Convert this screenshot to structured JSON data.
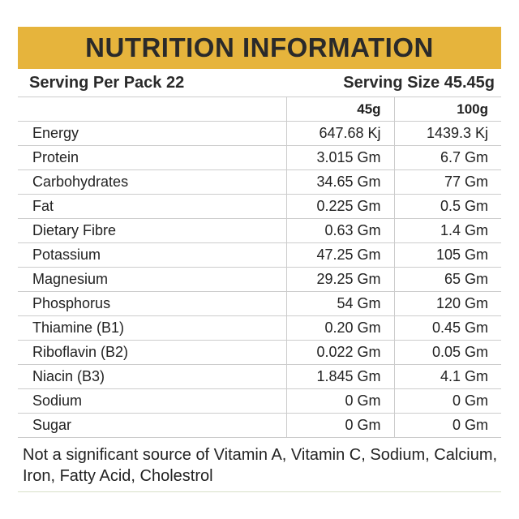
{
  "header": {
    "title": "NUTRITION INFORMATION"
  },
  "serving": {
    "per_pack": "Serving Per Pack 22",
    "size": "Serving Size 45.45g"
  },
  "table": {
    "columns": [
      "45g",
      "100g"
    ],
    "rows": [
      [
        "Energy",
        "647.68 Kj",
        "1439.3 Kj"
      ],
      [
        "Protein",
        "3.015 Gm",
        "6.7 Gm"
      ],
      [
        "Carbohydrates",
        "34.65 Gm",
        "77 Gm"
      ],
      [
        "Fat",
        "0.225 Gm",
        "0.5 Gm"
      ],
      [
        "Dietary Fibre",
        "0.63 Gm",
        "1.4 Gm"
      ],
      [
        "Potassium",
        "47.25 Gm",
        "105 Gm"
      ],
      [
        "Magnesium",
        "29.25 Gm",
        "65 Gm"
      ],
      [
        "Phosphorus",
        "54 Gm",
        "120 Gm"
      ],
      [
        "Thiamine (B1)",
        "0.20 Gm",
        "0.45 Gm"
      ],
      [
        "Riboflavin (B2)",
        "0.022 Gm",
        "0.05 Gm"
      ],
      [
        "Niacin (B3)",
        "1.845 Gm",
        "4.1 Gm"
      ],
      [
        "Sodium",
        "0 Gm",
        "0 Gm"
      ],
      [
        "Sugar",
        "0 Gm",
        "0 Gm"
      ]
    ]
  },
  "footnote": "Not a significant source of Vitamin A, Vitamin C, Sodium, Calcium, Iron, Fatty Acid, Cholestrol"
}
